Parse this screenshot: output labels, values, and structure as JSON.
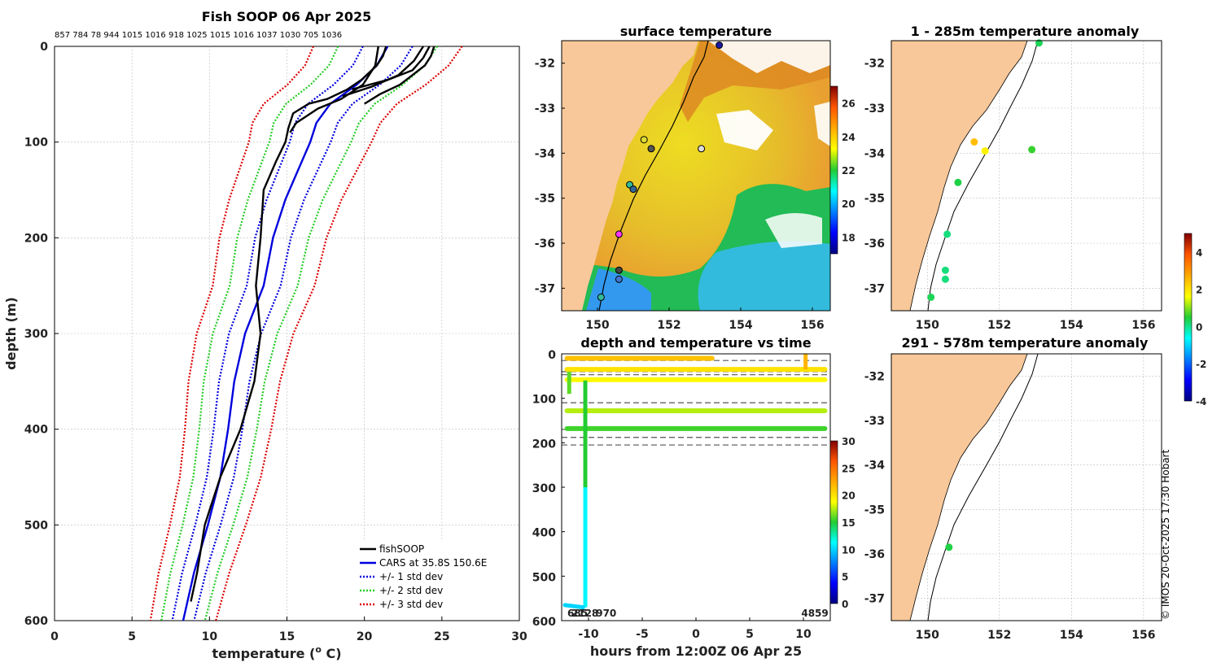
{
  "chart_data": [
    {
      "id": "profile",
      "type": "line",
      "title": "Fish SOOP 06 Apr 2025",
      "top_labels": "857 784 78 944 1015 1016 918 1025 1015 1016 1037 1030 705 1036",
      "xlabel_main": "temperature (",
      "xlabel_sup": "o",
      "xlabel_end": " C)",
      "ylabel": "depth (m)",
      "xlim": [
        0,
        30
      ],
      "ylim": [
        0,
        600
      ],
      "xticks": [
        0,
        5,
        10,
        15,
        20,
        25,
        30
      ],
      "yticks": [
        0,
        100,
        200,
        300,
        400,
        500,
        600
      ],
      "legend": [
        "fishSOOP",
        "CARS at 35.8S 150.6E",
        "+/- 1 std dev",
        "+/- 2 std dev",
        "+/- 3 std dev"
      ],
      "legend_colors": [
        "#000000",
        "#0000dd",
        "#0000dd",
        "#22cc22",
        "#dd0000"
      ],
      "cars_mean": {
        "depth": [
          0,
          20,
          40,
          60,
          80,
          100,
          130,
          160,
          200,
          250,
          300,
          350,
          400,
          450,
          500,
          550,
          600
        ],
        "temp": [
          21.5,
          20.8,
          19.5,
          17.8,
          16.9,
          16.5,
          15.7,
          14.9,
          14.1,
          13.5,
          12.3,
          11.6,
          11.2,
          10.7,
          9.9,
          9.0,
          8.3
        ]
      },
      "cars_std": [
        1.6,
        3.2,
        4.8
      ],
      "fishsoop": [
        {
          "depth": [
            0,
            20,
            40,
            55,
            65,
            80,
            90
          ],
          "temp": [
            20.9,
            20.7,
            19.9,
            18.5,
            17.0,
            15.6,
            15.2
          ]
        },
        {
          "depth": [
            0,
            10,
            20,
            35,
            45,
            55,
            60,
            70,
            85,
            100,
            120,
            150,
            200,
            250,
            300,
            350,
            400,
            450,
            500,
            550,
            580
          ],
          "temp": [
            21.4,
            21.2,
            20.8,
            19.8,
            18.9,
            17.6,
            16.4,
            15.4,
            15.1,
            14.9,
            14.3,
            13.5,
            13.3,
            13.0,
            13.3,
            12.9,
            12.0,
            10.7,
            9.7,
            9.2,
            8.8
          ]
        },
        {
          "depth": [
            0,
            10,
            20,
            30,
            40,
            50,
            60
          ],
          "temp": [
            24.5,
            24.3,
            23.9,
            23.1,
            22.3,
            21.0,
            20.0
          ]
        },
        {
          "depth": [
            0,
            12,
            25,
            35,
            45
          ],
          "temp": [
            24.2,
            23.8,
            23.1,
            21.5,
            19.2
          ]
        },
        {
          "depth": [
            0,
            15,
            30,
            42,
            52
          ],
          "temp": [
            23.8,
            23.2,
            22.2,
            20.5,
            18.6
          ]
        }
      ]
    },
    {
      "id": "sst",
      "type": "heatmap",
      "title": "surface temperature",
      "xlim": [
        149.0,
        156.5
      ],
      "ylim": [
        -37.5,
        -31.5
      ],
      "xticks": [
        150,
        152,
        154,
        156
      ],
      "yticks": [
        -32,
        -33,
        -34,
        -35,
        -36,
        -37
      ],
      "colorbar_ticks": [
        18,
        20,
        22,
        24,
        26
      ],
      "colorbar_range": [
        17,
        27
      ],
      "stations": [
        {
          "lon": 153.4,
          "lat": -31.6,
          "c": "#1a1aa0"
        },
        {
          "lon": 151.3,
          "lat": -33.7,
          "c": "#dddd33"
        },
        {
          "lon": 151.5,
          "lat": -33.9,
          "c": "#555555"
        },
        {
          "lon": 152.9,
          "lat": -33.9,
          "c": "#dddddd"
        },
        {
          "lon": 150.9,
          "lat": -34.7,
          "c": "#33bb99"
        },
        {
          "lon": 151.0,
          "lat": -34.8,
          "c": "#336699"
        },
        {
          "lon": 150.6,
          "lat": -35.8,
          "c": "#ff33ff"
        },
        {
          "lon": 150.6,
          "lat": -36.6,
          "c": "#444444"
        },
        {
          "lon": 150.6,
          "lat": -36.8,
          "c": "#4477cc"
        },
        {
          "lon": 150.1,
          "lat": -37.2,
          "c": "#33bb99"
        }
      ]
    },
    {
      "id": "timeseries",
      "type": "scatter",
      "title": "depth and temperature vs time",
      "xlabel": "hours from 12:00Z 06 Apr 25",
      "xlim": [
        -12.5,
        12.5
      ],
      "ylim": [
        0,
        600
      ],
      "xticks": [
        -10,
        -5,
        0,
        5,
        10
      ],
      "yticks": [
        0,
        100,
        200,
        300,
        400,
        500,
        600
      ],
      "colorbar_ticks": [
        0,
        5,
        10,
        15,
        20,
        25,
        30
      ],
      "colorbar_range": [
        0,
        30
      ],
      "bottom_labels": [
        "685",
        "2128",
        "970",
        "4859"
      ],
      "dashed_depths": [
        15,
        40,
        47,
        110,
        170,
        188,
        205
      ],
      "tracks": [
        {
          "depth": 10,
          "x0": -12.0,
          "x1": 1.5,
          "temp": 21.5
        },
        {
          "depth": 35,
          "x0": -12.0,
          "x1": 12.0,
          "temp": 20.0
        },
        {
          "depth": 58,
          "x0": -12.0,
          "x1": 12.0,
          "temp": 19.0
        },
        {
          "depth": 128,
          "x0": -12.0,
          "x1": 12.0,
          "temp": 17.5
        },
        {
          "depth": 168,
          "x0": -12.0,
          "x1": 12.0,
          "temp": 15.5
        }
      ]
    },
    {
      "id": "anom1",
      "type": "scatter",
      "title": "1 - 285m temperature anomaly",
      "xlim": [
        149.0,
        156.5
      ],
      "ylim": [
        -37.5,
        -31.5
      ],
      "xticks": [
        150,
        152,
        154,
        156
      ],
      "yticks": [
        -32,
        -33,
        -34,
        -35,
        -36,
        -37
      ],
      "points": [
        {
          "lon": 153.1,
          "lat": -31.55,
          "v": 0.3
        },
        {
          "lon": 151.3,
          "lat": -33.75,
          "v": 2.5
        },
        {
          "lon": 151.6,
          "lat": -33.95,
          "v": 1.8
        },
        {
          "lon": 152.9,
          "lat": -33.92,
          "v": 0.6
        },
        {
          "lon": 150.85,
          "lat": -34.65,
          "v": 0.4
        },
        {
          "lon": 150.55,
          "lat": -35.8,
          "v": 0.1
        },
        {
          "lon": 150.5,
          "lat": -36.6,
          "v": 0.1
        },
        {
          "lon": 150.5,
          "lat": -36.8,
          "v": 0.1
        },
        {
          "lon": 150.1,
          "lat": -37.2,
          "v": 0.3
        }
      ]
    },
    {
      "id": "anom2",
      "type": "scatter",
      "title": "291 - 578m temperature anomaly",
      "xlim": [
        149.0,
        156.5
      ],
      "ylim": [
        -37.5,
        -31.5
      ],
      "xticks": [
        150,
        152,
        154,
        156
      ],
      "yticks": [
        -32,
        -33,
        -34,
        -35,
        -36,
        -37
      ],
      "points": [
        {
          "lon": 150.6,
          "lat": -35.85,
          "v": 0.4
        }
      ],
      "colorbar_ticks": [
        -4,
        -2,
        0,
        2,
        4
      ],
      "colorbar_range": [
        -4,
        5
      ]
    }
  ],
  "footer": {
    "credit": "© IMOS 20-Oct-2025 17:30 Hobart"
  }
}
